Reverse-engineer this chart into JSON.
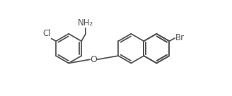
{
  "bg_color": "#ffffff",
  "line_color": "#555555",
  "line_width": 1.3,
  "font_size": 8.5,
  "Cl_label": "Cl",
  "NH2_label": "NH₂",
  "O_label": "O",
  "Br_label": "Br",
  "xlim": [
    -5,
    333
  ],
  "ylim": [
    -5,
    141
  ]
}
